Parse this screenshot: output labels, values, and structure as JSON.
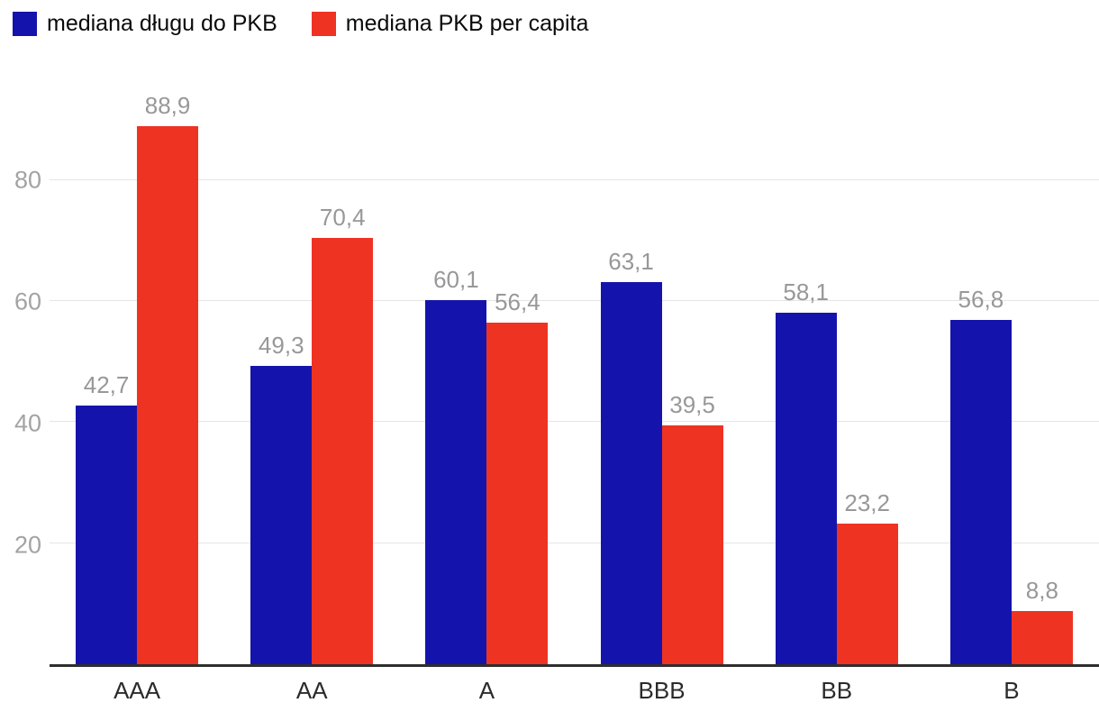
{
  "chart_data": {
    "type": "bar",
    "title": "",
    "xlabel": "",
    "ylabel": "",
    "categories": [
      "AAA",
      "AA",
      "A",
      "BBB",
      "BB",
      "B"
    ],
    "series": [
      {
        "name": "mediana długu do PKB",
        "color": "#1414ac",
        "values": [
          42.7,
          49.3,
          60.1,
          63.1,
          58.1,
          56.8
        ],
        "labels": [
          "42,7",
          "49,3",
          "60,1",
          "63,1",
          "58,1",
          "56,8"
        ]
      },
      {
        "name": "mediana PKB per capita",
        "color": "#ee3323",
        "values": [
          88.9,
          70.4,
          56.4,
          39.5,
          23.2,
          8.8
        ],
        "labels": [
          "88,9",
          "70,4",
          "56,4",
          "39,5",
          "23,2",
          "8,8"
        ]
      }
    ],
    "yticks": [
      20,
      40,
      60,
      80
    ],
    "ylim": [
      0,
      96.3
    ],
    "grid": true,
    "legend_position": "top-left",
    "decimal_separator": ","
  }
}
